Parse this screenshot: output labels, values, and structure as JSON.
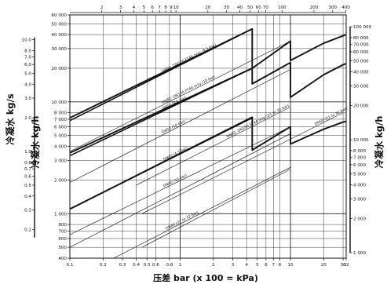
{
  "chart_data": {
    "type": "line",
    "x_scale": "log",
    "y_scale": "log",
    "xlim": [
      0.1,
      32
    ],
    "ylim_kg_h": [
      400,
      60000
    ],
    "xlabel": "压差 bar (x 100 = kPa)",
    "ylabel_inner_left": "冷凝水 kg/h",
    "ylabel_outer_left": "冷凝水 kg/s",
    "ylabel_right": "冷凝水 kg/h",
    "bottom_ticks": [
      {
        "v": 0.1,
        "t": "0.1"
      },
      {
        "v": 0.2,
        "t": "0.2"
      },
      {
        "v": 0.3,
        "t": "0.3"
      },
      {
        "v": 0.4,
        "t": "0.4"
      },
      {
        "v": 0.5,
        "t": "0.5"
      },
      {
        "v": 0.6,
        "t": "0.6"
      },
      {
        "v": 0.8,
        "t": "0.8"
      },
      {
        "v": 1,
        "t": "1"
      },
      {
        "v": 2,
        "t": "2"
      },
      {
        "v": 3,
        "t": "3"
      },
      {
        "v": 4,
        "t": "4"
      },
      {
        "v": 5,
        "t": "5"
      },
      {
        "v": 6,
        "t": "6"
      },
      {
        "v": 7,
        "t": "7"
      },
      {
        "v": 8,
        "t": "8"
      },
      {
        "v": 10,
        "t": "10"
      },
      {
        "v": 20,
        "t": "20"
      },
      {
        "v": 30,
        "t": "30"
      },
      {
        "v": 32,
        "t": "32"
      }
    ],
    "top_ticks": [
      {
        "v": 2,
        "t": "2"
      },
      {
        "v": 3,
        "t": "3"
      },
      {
        "v": 4,
        "t": "4"
      },
      {
        "v": 5,
        "t": "5"
      },
      {
        "v": 6,
        "t": "6"
      },
      {
        "v": 7,
        "t": "7"
      },
      {
        "v": 8,
        "t": "8"
      },
      {
        "v": 9,
        "t": "9"
      },
      {
        "v": 10,
        "t": "10"
      },
      {
        "v": 20,
        "t": "20"
      },
      {
        "v": 30,
        "t": "30"
      },
      {
        "v": 40,
        "t": "40"
      },
      {
        "v": 50,
        "t": "50"
      },
      {
        "v": 60,
        "t": "60"
      },
      {
        "v": 70,
        "t": "70"
      },
      {
        "v": 100,
        "t": "100"
      },
      {
        "v": 200,
        "t": "200"
      },
      {
        "v": 300,
        "t": "300"
      },
      {
        "v": 400,
        "t": "400"
      }
    ],
    "left_ticks_kg_h": [
      {
        "v": 60000,
        "t": "60 000"
      },
      {
        "v": 50000,
        "t": "50 000"
      },
      {
        "v": 40000,
        "t": "40 000"
      },
      {
        "v": 30000,
        "t": "30 000"
      },
      {
        "v": 20000,
        "t": "20 000"
      },
      {
        "v": 10000,
        "t": "10 000"
      },
      {
        "v": 8000,
        "t": "8 000"
      },
      {
        "v": 7000,
        "t": "7 000"
      },
      {
        "v": 6000,
        "t": "6 000"
      },
      {
        "v": 5000,
        "t": "5 000"
      },
      {
        "v": 4000,
        "t": "4 000"
      },
      {
        "v": 3000,
        "t": "3 000"
      },
      {
        "v": 2000,
        "t": "2 000"
      },
      {
        "v": 1000,
        "t": "1 000"
      },
      {
        "v": 800,
        "t": "800"
      },
      {
        "v": 700,
        "t": "700"
      },
      {
        "v": 600,
        "t": "600"
      },
      {
        "v": 500,
        "t": "500"
      },
      {
        "v": 400,
        "t": "400"
      }
    ],
    "left_ticks_kg_s": [
      {
        "v": 10,
        "t": "10.0"
      },
      {
        "v": 8,
        "t": "8.0"
      },
      {
        "v": 7,
        "t": "7.0"
      },
      {
        "v": 6,
        "t": "6.0"
      },
      {
        "v": 5,
        "t": "5.0"
      },
      {
        "v": 4,
        "t": "4.0"
      },
      {
        "v": 3,
        "t": "3.0"
      },
      {
        "v": 2,
        "t": "2.0"
      },
      {
        "v": 1,
        "t": "1.0"
      },
      {
        "v": 0.8,
        "t": "0.8"
      },
      {
        "v": 0.7,
        "t": "0.7"
      },
      {
        "v": 0.6,
        "t": "0.6"
      },
      {
        "v": 0.5,
        "t": "0.5"
      },
      {
        "v": 0.4,
        "t": "0.4"
      },
      {
        "v": 0.3,
        "t": "0.3"
      },
      {
        "v": 0.2,
        "t": "0.2"
      }
    ],
    "right_ticks_kg_h": [
      {
        "v": 100000,
        "t": "100 000"
      },
      {
        "v": 80000,
        "t": "80 000"
      },
      {
        "v": 70000,
        "t": "70 000"
      },
      {
        "v": 60000,
        "t": "60 000"
      },
      {
        "v": 50000,
        "t": "50 000"
      },
      {
        "v": 40000,
        "t": "40 000"
      },
      {
        "v": 30000,
        "t": "30 000"
      },
      {
        "v": 20000,
        "t": "20 000"
      },
      {
        "v": 10000,
        "t": "10 000"
      },
      {
        "v": 8000,
        "t": "8 000"
      },
      {
        "v": 7000,
        "t": "7 000"
      },
      {
        "v": 6000,
        "t": "6 000"
      },
      {
        "v": 5000,
        "t": "5 000"
      },
      {
        "v": 4000,
        "t": "4 000"
      },
      {
        "v": 3000,
        "t": "3 000"
      },
      {
        "v": 2000,
        "t": "2 000"
      },
      {
        "v": 1000,
        "t": "1 000"
      }
    ],
    "series": [
      {
        "name": "DN80, DN100 FT44 only (4.5 bar)",
        "x": [
          0.1,
          4.5
        ],
        "y": [
          6800,
          45000
        ],
        "bold": true,
        "label_at": 0.7
      },
      {
        "name": "DN80, DN100 FT44 only (10 bar)",
        "x": [
          0.1,
          10
        ],
        "y": [
          3600,
          35000
        ],
        "bold": false,
        "label_at": 0.7
      },
      {
        "name": "DN80, DN100 FT44 only (21 to 32 bar)",
        "x": [
          0.4,
          10
        ],
        "y": [
          1800,
          9000
        ],
        "bold": false,
        "label_at": 2.7
      },
      {
        "name": "DN50 (4.5 bar)",
        "x": [
          0.1,
          4.5
        ],
        "y": [
          3300,
          20000
        ],
        "bold": true,
        "label_at": 0.7
      },
      {
        "name": "DN50 (10 bar)",
        "x": [
          0.1,
          10
        ],
        "y": [
          1900,
          19500
        ],
        "bold": false,
        "label_at": 0.7
      },
      {
        "name": "DN50 (21 to 32 bar)",
        "x": [
          0.45,
          30
        ],
        "y": [
          1000,
          8000
        ],
        "bold": false,
        "label_at": 17
      },
      {
        "name": "DN40 (4.5 bar)",
        "x": [
          0.1,
          4.5
        ],
        "y": [
          1100,
          7200
        ],
        "bold": true,
        "label_at": 0.72
      },
      {
        "name": "DN40 (10 bar)",
        "x": [
          0.1,
          10
        ],
        "y": [
          650,
          6000
        ],
        "bold": false,
        "label_at": 0.72
      },
      {
        "name": "DN40 (21 to 32 bar)",
        "x": [
          0.25,
          10
        ],
        "y": [
          400,
          2600
        ],
        "bold": false,
        "label_at": 0.76
      },
      {
        "name": "",
        "x": [
          0.1,
          10
        ],
        "y": [
          500,
          5200
        ],
        "bold": false,
        "label_at": 0
      },
      {
        "name": "",
        "x": [
          0.45,
          10
        ],
        "y": [
          500,
          2500
        ],
        "bold": false,
        "label_at": 0
      }
    ],
    "heavy_curves": [
      {
        "pts": [
          [
            0.1,
            7200
          ],
          [
            4.5,
            45000
          ],
          [
            4.5,
            20000
          ],
          [
            10,
            35000
          ],
          [
            10,
            23500
          ],
          [
            20,
            33500
          ],
          [
            30,
            39000
          ],
          [
            32,
            40000
          ]
        ]
      },
      {
        "pts": [
          [
            0.1,
            3500
          ],
          [
            4.5,
            20000
          ],
          [
            4.5,
            14500
          ],
          [
            10,
            22500
          ],
          [
            10,
            11000
          ],
          [
            20,
            17500
          ],
          [
            30,
            21500
          ],
          [
            32,
            22000
          ]
        ]
      },
      {
        "pts": [
          [
            0.1,
            1100
          ],
          [
            4.5,
            7300
          ],
          [
            4.5,
            3700
          ],
          [
            10,
            6000
          ],
          [
            10,
            4200
          ],
          [
            20,
            5700
          ],
          [
            30,
            6600
          ],
          [
            32,
            6700
          ]
        ]
      }
    ]
  }
}
